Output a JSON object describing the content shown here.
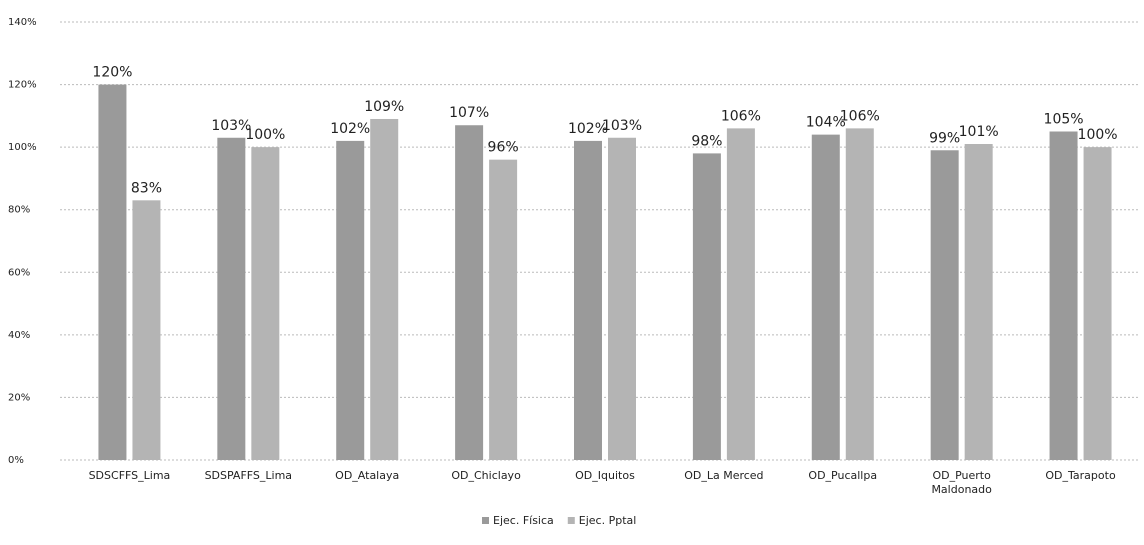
{
  "chart_data": {
    "type": "bar",
    "categories": [
      "SDSCFFS_Lima",
      "SDSPAFFS_Lima",
      "OD_Atalaya",
      "OD_Chiclayo",
      "OD_Iquitos",
      "OD_La Merced",
      "OD_Pucallpa",
      "OD_Puerto Maldonado",
      "OD_Tarapoto"
    ],
    "series": [
      {
        "name": "Ejec. Física",
        "color": "#9a9a9a",
        "values": [
          120,
          103,
          102,
          107,
          102,
          98,
          104,
          99,
          105
        ],
        "value_labels": [
          "120%",
          "103%",
          "102%",
          "107%",
          "102%",
          "98%",
          "104%",
          "99%",
          "105%"
        ]
      },
      {
        "name": "Ejec. Pptal",
        "color": "#b4b4b4",
        "values": [
          83,
          100,
          109,
          96,
          103,
          106,
          106,
          101,
          100
        ],
        "value_labels": [
          "83%",
          "100%",
          "109%",
          "96%",
          "103%",
          "106%",
          "106%",
          "101%",
          "100%"
        ]
      }
    ],
    "ylim": [
      0,
      140
    ],
    "yticks": [
      {
        "value": 0,
        "label": "0%"
      },
      {
        "value": 20,
        "label": "20%"
      },
      {
        "value": 40,
        "label": "40%"
      },
      {
        "value": 60,
        "label": "60%"
      },
      {
        "value": 80,
        "label": "80%"
      },
      {
        "value": 100,
        "label": "100%"
      },
      {
        "value": 120,
        "label": "120%"
      },
      {
        "value": 140,
        "label": "140%"
      }
    ],
    "grid": true,
    "legend": "bottom"
  }
}
